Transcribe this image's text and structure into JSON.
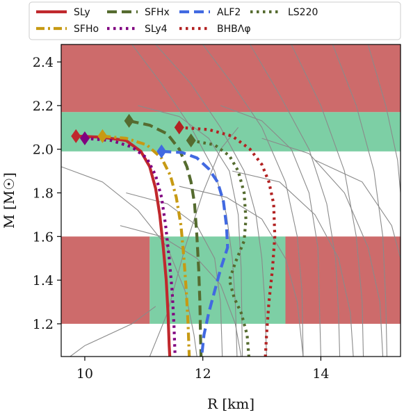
{
  "chart_data": {
    "type": "line",
    "title": "",
    "xlabel": "R [km]",
    "ylabel": "M [M☉]",
    "xlim": [
      9.6,
      15.35
    ],
    "ylim": [
      1.05,
      2.48
    ],
    "xticks": [
      10,
      12,
      14
    ],
    "xtick_labels": [
      "10",
      "12",
      "14"
    ],
    "yticks": [
      1.2,
      1.4,
      1.6,
      1.8,
      2.0,
      2.2,
      2.4
    ],
    "ytick_labels": [
      "1.2",
      "1.4",
      "1.6",
      "1.8",
      "2.0",
      "2.2",
      "2.4"
    ],
    "grid": false,
    "legend_position": "top (above plot, 5 columns)",
    "colors": {
      "excluded_band": "#cd6b6b",
      "allowed_band": "#7dcfa5",
      "background_curves": "#8a8a8a"
    },
    "bands": [
      {
        "kind": "excluded",
        "x0": 9.6,
        "x1": 15.35,
        "y0": 2.17,
        "y1": 2.48
      },
      {
        "kind": "allowed",
        "x0": 9.6,
        "x1": 15.35,
        "y0": 1.99,
        "y1": 2.17
      },
      {
        "kind": "excluded",
        "x0": 9.6,
        "x1": 11.1,
        "y0": 1.2,
        "y1": 1.6
      },
      {
        "kind": "allowed",
        "x0": 11.1,
        "x1": 13.4,
        "y0": 1.2,
        "y1": 1.6
      },
      {
        "kind": "excluded",
        "x0": 13.4,
        "x1": 15.35,
        "y0": 1.2,
        "y1": 1.6
      }
    ],
    "series": [
      {
        "name": "SLy",
        "color": "#c0282d",
        "dash": "solid",
        "max_marker": [
          9.85,
          2.06
        ],
        "points": [
          [
            9.85,
            2.06
          ],
          [
            10.3,
            2.055
          ],
          [
            10.7,
            2.04
          ],
          [
            10.95,
            1.99
          ],
          [
            11.1,
            1.92
          ],
          [
            11.2,
            1.82
          ],
          [
            11.27,
            1.7
          ],
          [
            11.33,
            1.55
          ],
          [
            11.38,
            1.4
          ],
          [
            11.41,
            1.25
          ],
          [
            11.43,
            1.1
          ],
          [
            11.44,
            1.05
          ]
        ]
      },
      {
        "name": "SFHo",
        "color": "#c79a14",
        "dash": "dashdot",
        "max_marker": [
          10.3,
          2.06
        ],
        "points": [
          [
            10.3,
            2.06
          ],
          [
            10.7,
            2.05
          ],
          [
            11.05,
            2.02
          ],
          [
            11.3,
            1.96
          ],
          [
            11.45,
            1.88
          ],
          [
            11.55,
            1.78
          ],
          [
            11.63,
            1.65
          ],
          [
            11.68,
            1.5
          ],
          [
            11.72,
            1.35
          ],
          [
            11.75,
            1.2
          ],
          [
            11.77,
            1.05
          ]
        ]
      },
      {
        "name": "SFHx",
        "color": "#556b2f",
        "dash": "dashed",
        "max_marker": [
          10.75,
          2.13
        ],
        "points": [
          [
            10.75,
            2.13
          ],
          [
            11.1,
            2.11
          ],
          [
            11.4,
            2.07
          ],
          [
            11.6,
            2.0
          ],
          [
            11.73,
            1.92
          ],
          [
            11.8,
            1.85
          ],
          [
            11.86,
            1.75
          ],
          [
            11.9,
            1.6
          ],
          [
            11.93,
            1.45
          ],
          [
            11.95,
            1.3
          ],
          [
            11.96,
            1.15
          ],
          [
            11.97,
            1.05
          ]
        ]
      },
      {
        "name": "SLy4",
        "color": "#800080",
        "dash": "dotted",
        "max_marker": [
          10.0,
          2.05
        ],
        "points": [
          [
            10.0,
            2.05
          ],
          [
            10.45,
            2.04
          ],
          [
            10.8,
            2.01
          ],
          [
            11.05,
            1.96
          ],
          [
            11.2,
            1.88
          ],
          [
            11.3,
            1.78
          ],
          [
            11.37,
            1.65
          ],
          [
            11.43,
            1.5
          ],
          [
            11.48,
            1.35
          ],
          [
            11.51,
            1.2
          ],
          [
            11.53,
            1.05
          ]
        ]
      },
      {
        "name": "ALF2",
        "color": "#4169e1",
        "dash": "dashed",
        "max_marker": [
          11.3,
          1.99
        ],
        "points": [
          [
            11.3,
            1.99
          ],
          [
            11.65,
            1.985
          ],
          [
            11.9,
            1.96
          ],
          [
            12.1,
            1.91
          ],
          [
            12.25,
            1.85
          ],
          [
            12.35,
            1.76
          ],
          [
            12.4,
            1.65
          ],
          [
            12.42,
            1.55
          ],
          [
            12.3,
            1.45
          ],
          [
            12.2,
            1.35
          ],
          [
            12.1,
            1.25
          ],
          [
            12.02,
            1.15
          ],
          [
            11.98,
            1.05
          ]
        ]
      },
      {
        "name": "BHBΛφ",
        "color": "#b22222",
        "dash": "dotted",
        "max_marker": [
          11.6,
          2.1
        ],
        "points": [
          [
            11.6,
            2.1
          ],
          [
            12.1,
            2.09
          ],
          [
            12.5,
            2.06
          ],
          [
            12.8,
            2.0
          ],
          [
            13.0,
            1.93
          ],
          [
            13.12,
            1.85
          ],
          [
            13.2,
            1.75
          ],
          [
            13.22,
            1.6
          ],
          [
            13.18,
            1.45
          ],
          [
            13.12,
            1.3
          ],
          [
            13.08,
            1.15
          ],
          [
            13.06,
            1.05
          ]
        ]
      },
      {
        "name": "LS220",
        "color": "#556b2f",
        "dash": "dotted",
        "max_marker": [
          11.8,
          2.04
        ],
        "points": [
          [
            11.8,
            2.04
          ],
          [
            12.2,
            2.02
          ],
          [
            12.45,
            1.97
          ],
          [
            12.6,
            1.9
          ],
          [
            12.7,
            1.8
          ],
          [
            12.73,
            1.68
          ],
          [
            12.7,
            1.58
          ],
          [
            12.55,
            1.48
          ],
          [
            12.45,
            1.4
          ],
          [
            12.53,
            1.32
          ],
          [
            12.65,
            1.25
          ],
          [
            12.75,
            1.15
          ],
          [
            12.78,
            1.05
          ]
        ]
      }
    ],
    "background_curves": [
      [
        [
          10.8,
          2.48
        ],
        [
          11.3,
          2.3
        ],
        [
          11.8,
          2.1
        ],
        [
          12.2,
          1.9
        ],
        [
          12.4,
          1.7
        ],
        [
          12.5,
          1.5
        ],
        [
          12.55,
          1.3
        ],
        [
          12.58,
          1.05
        ]
      ],
      [
        [
          11.2,
          2.48
        ],
        [
          11.8,
          2.3
        ],
        [
          12.3,
          2.1
        ],
        [
          12.7,
          1.9
        ],
        [
          12.9,
          1.7
        ],
        [
          13.0,
          1.5
        ],
        [
          13.05,
          1.3
        ],
        [
          13.08,
          1.05
        ]
      ],
      [
        [
          12.0,
          2.48
        ],
        [
          12.5,
          2.3
        ],
        [
          13.0,
          2.1
        ],
        [
          13.4,
          1.85
        ],
        [
          13.6,
          1.6
        ],
        [
          13.68,
          1.35
        ],
        [
          13.7,
          1.05
        ]
      ],
      [
        [
          12.8,
          2.48
        ],
        [
          13.3,
          2.25
        ],
        [
          13.8,
          2.0
        ],
        [
          14.1,
          1.75
        ],
        [
          14.25,
          1.5
        ],
        [
          14.3,
          1.25
        ],
        [
          14.32,
          1.05
        ]
      ],
      [
        [
          13.5,
          2.48
        ],
        [
          14.0,
          2.2
        ],
        [
          14.4,
          1.9
        ],
        [
          14.6,
          1.6
        ],
        [
          14.7,
          1.3
        ],
        [
          14.72,
          1.05
        ]
      ],
      [
        [
          14.2,
          2.48
        ],
        [
          14.6,
          2.2
        ],
        [
          14.9,
          1.9
        ],
        [
          15.05,
          1.6
        ],
        [
          15.1,
          1.3
        ],
        [
          15.12,
          1.05
        ]
      ],
      [
        [
          14.8,
          2.48
        ],
        [
          15.1,
          2.2
        ],
        [
          15.3,
          1.95
        ],
        [
          15.35,
          1.8
        ]
      ],
      [
        [
          9.6,
          1.92
        ],
        [
          10.3,
          1.85
        ],
        [
          10.9,
          1.72
        ],
        [
          11.4,
          1.55
        ],
        [
          11.7,
          1.35
        ],
        [
          11.85,
          1.15
        ],
        [
          11.9,
          1.05
        ]
      ],
      [
        [
          10.6,
          1.65
        ],
        [
          11.3,
          1.6
        ],
        [
          11.9,
          1.5
        ],
        [
          12.3,
          1.38
        ],
        [
          12.55,
          1.2
        ],
        [
          12.65,
          1.05
        ]
      ],
      [
        [
          11.6,
          1.83
        ],
        [
          12.4,
          1.78
        ],
        [
          13.0,
          1.68
        ],
        [
          13.4,
          1.5
        ],
        [
          13.6,
          1.3
        ],
        [
          13.7,
          1.05
        ]
      ],
      [
        [
          12.5,
          1.9
        ],
        [
          13.3,
          1.85
        ],
        [
          13.9,
          1.7
        ],
        [
          14.3,
          1.5
        ],
        [
          14.5,
          1.25
        ],
        [
          14.55,
          1.05
        ]
      ],
      [
        [
          13.0,
          2.05
        ],
        [
          13.8,
          1.98
        ],
        [
          14.4,
          1.8
        ],
        [
          14.8,
          1.55
        ],
        [
          15.0,
          1.3
        ],
        [
          15.05,
          1.05
        ]
      ],
      [
        [
          13.9,
          1.95
        ],
        [
          14.7,
          1.85
        ],
        [
          15.2,
          1.65
        ],
        [
          15.35,
          1.5
        ]
      ],
      [
        [
          10.9,
          2.2
        ],
        [
          11.6,
          2.15
        ],
        [
          12.1,
          2.05
        ],
        [
          12.45,
          1.9
        ],
        [
          12.6,
          1.7
        ],
        [
          12.65,
          1.45
        ],
        [
          12.67,
          1.05
        ]
      ],
      [
        [
          12.3,
          2.2
        ],
        [
          13.0,
          2.13
        ],
        [
          13.5,
          2.0
        ],
        [
          13.8,
          1.8
        ],
        [
          13.95,
          1.55
        ],
        [
          14.0,
          1.05
        ]
      ],
      [
        [
          10.7,
          1.8
        ],
        [
          11.4,
          1.75
        ],
        [
          11.9,
          1.65
        ],
        [
          12.2,
          1.5
        ],
        [
          12.3,
          1.3
        ],
        [
          12.33,
          1.05
        ]
      ],
      [
        [
          9.6,
          1.02
        ],
        [
          10.0,
          1.1
        ],
        [
          10.8,
          1.2
        ],
        [
          11.2,
          1.28
        ]
      ],
      [
        [
          11.1,
          1.05
        ],
        [
          11.4,
          1.25
        ],
        [
          11.7,
          1.55
        ],
        [
          12.0,
          1.8
        ],
        [
          12.3,
          2.0
        ],
        [
          12.6,
          2.1
        ]
      ]
    ]
  }
}
